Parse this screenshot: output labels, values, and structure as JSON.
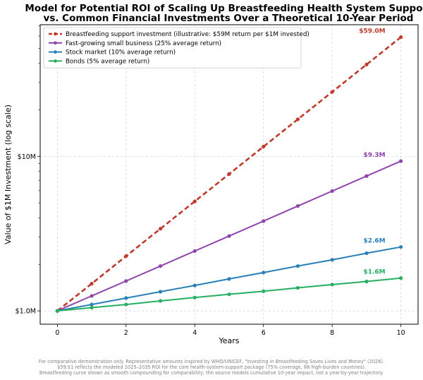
{
  "chart_data": {
    "type": "line",
    "title_lines": [
      "Model for Potential ROI of Scaling Up Breastfeeding Health System Support",
      "vs. Common Financial Investments Over a Theoretical 10-Year Period"
    ],
    "xlabel": "Years",
    "ylabel": "Value of $1M Investment (log scale)",
    "x": [
      0,
      1,
      2,
      3,
      4,
      5,
      6,
      7,
      8,
      9,
      10
    ],
    "xlim": [
      -0.5,
      10.5
    ],
    "x_ticks": [
      "0",
      "2",
      "4",
      "6",
      "8",
      "10"
    ],
    "y_scale": "log",
    "ylim": [
      0.82,
      71
    ],
    "y_ticks": [
      {
        "value": 1,
        "label": "$1.0M"
      },
      {
        "value": 10,
        "label": "$10M"
      }
    ],
    "grid": true,
    "legend_position": "top-left",
    "series": [
      {
        "name": "Breastfeeding support investment (illustrative: $59M return per $1M invested)",
        "color": "#c0392b",
        "dashed": true,
        "values": [
          1.0,
          1.5,
          2.26,
          3.4,
          5.11,
          7.68,
          11.55,
          17.36,
          26.1,
          39.24,
          59.0
        ],
        "end_label": "$59.0M"
      },
      {
        "name": "Fast-growing small business (25% average return)",
        "color": "#8e44ad",
        "dashed": false,
        "values": [
          1.0,
          1.25,
          1.56,
          1.95,
          2.44,
          3.05,
          3.81,
          4.77,
          5.96,
          7.45,
          9.31
        ],
        "end_label": "$9.3M"
      },
      {
        "name": "Stock market (10% average return)",
        "color": "#2980b9",
        "dashed": false,
        "values": [
          1.0,
          1.1,
          1.21,
          1.33,
          1.46,
          1.61,
          1.77,
          1.95,
          2.14,
          2.36,
          2.59
        ],
        "end_label": "$2.6M"
      },
      {
        "name": "Bonds (5% average return)",
        "color": "#27ae60",
        "dashed": false,
        "values": [
          1.0,
          1.05,
          1.1,
          1.16,
          1.22,
          1.28,
          1.34,
          1.41,
          1.48,
          1.55,
          1.63
        ],
        "end_label": "$1.6M"
      }
    ]
  },
  "footnote_lines": [
    "For comparative demonstration only. Representative amounts inspired by WHO/UNICEF, \"Investing in Breastfeeding Saves Lives and Money\" (2026).",
    "$59:$1 reflects the modeled 2025–2035 ROI for the core health-system-support package (75% coverage, 88 high-burden countries).",
    "Breastfeeding curve shown as smooth compounding for comparability; the source models cumulative 10-year impact, not a year-by-year trajectory."
  ]
}
